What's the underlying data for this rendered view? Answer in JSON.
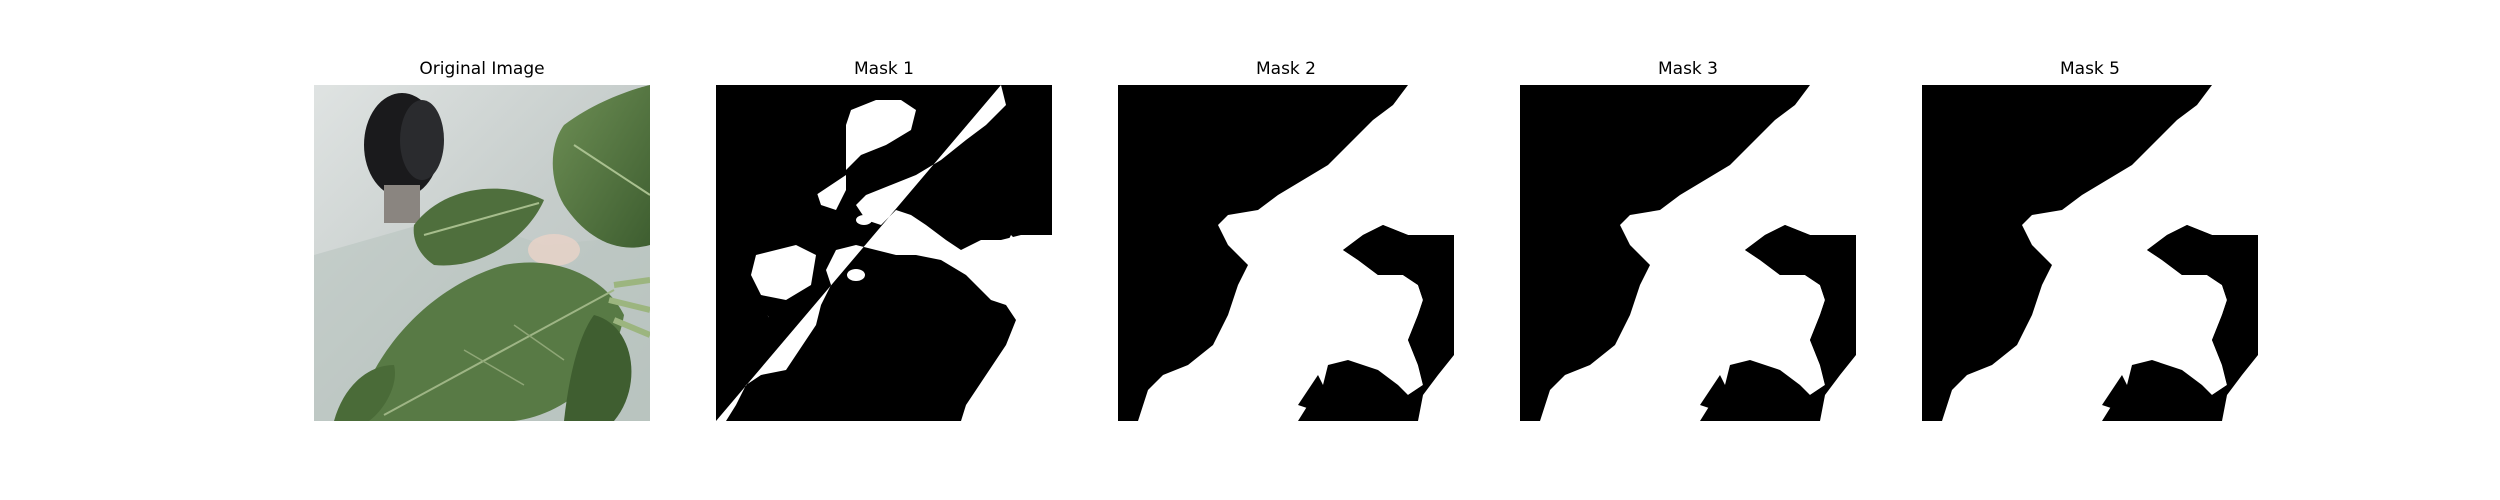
{
  "figure": {
    "panels": [
      {
        "title": "Original Image"
      },
      {
        "title": "Mask 1"
      },
      {
        "title": "Mask 2"
      },
      {
        "title": "Mask 3"
      },
      {
        "title": "Mask 5"
      }
    ],
    "colors": {
      "background": "#ffffff",
      "mask_background": "#000000",
      "mask_foreground": "#ffffff",
      "leaf_dark": "#3f6232",
      "leaf_mid": "#5d7f47",
      "leaf_light": "#7f9b62",
      "wall": "#c9cfcd",
      "object": "#1a1a1c"
    },
    "icons": [
      "leaf-photo",
      "binary-mask"
    ]
  }
}
